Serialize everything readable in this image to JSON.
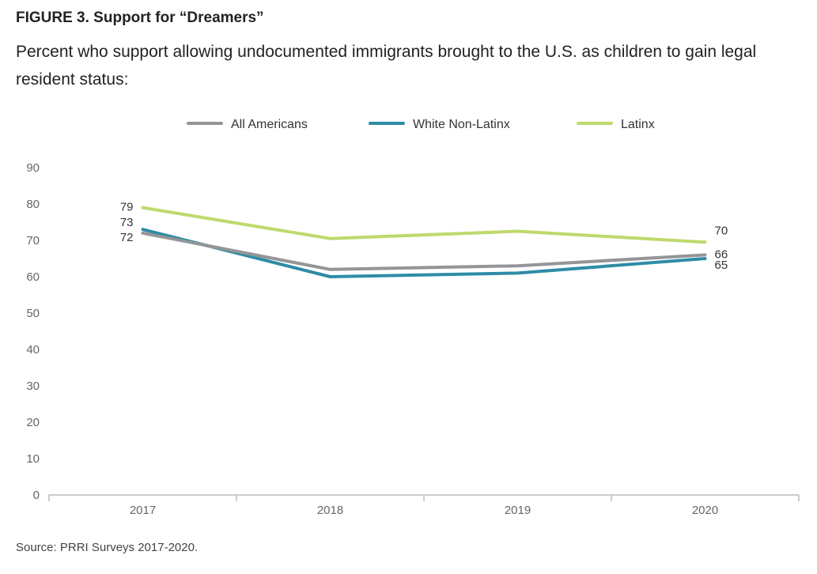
{
  "header": {
    "title": "FIGURE 3. Support for “Dreamers”",
    "subtitle": "Percent who support allowing undocumented immigrants brought to the U.S. as children to gain legal resident status:"
  },
  "footer": {
    "source": "Source: PRRI Surveys 2017-2020."
  },
  "chart_data": {
    "type": "line",
    "title": "FIGURE 3. Support for “Dreamers”",
    "subtitle": "Percent who support allowing undocumented immigrants brought to the U.S. as children to gain legal resident status:",
    "x": [
      "2017",
      "2018",
      "2019",
      "2020"
    ],
    "ylim": [
      0,
      90
    ],
    "yticks": [
      0,
      10,
      20,
      30,
      40,
      50,
      60,
      70,
      80,
      90
    ],
    "grid": false,
    "legend": "top-center",
    "series": [
      {
        "name": "All Americans",
        "color": "#939598",
        "values": [
          72,
          62,
          63,
          66
        ],
        "labels": [
          "72",
          "",
          "",
          "66"
        ]
      },
      {
        "name": "White Non-Latinx",
        "color": "#2e8ca6",
        "values": [
          73,
          60,
          61,
          65
        ],
        "labels": [
          "73",
          "",
          "",
          "65"
        ]
      },
      {
        "name": "Latinx",
        "color": "#bfd96d",
        "values": [
          79,
          70.5,
          72.5,
          69.5
        ],
        "labels": [
          "79",
          "",
          "",
          "70"
        ]
      }
    ]
  }
}
